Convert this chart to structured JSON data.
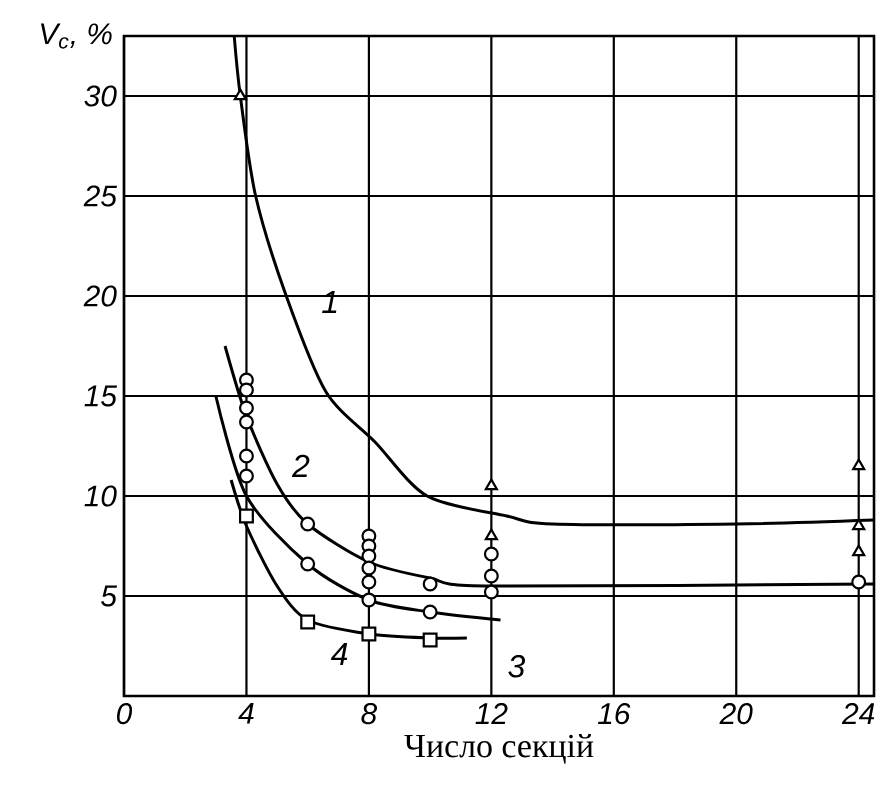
{
  "chart_data": {
    "type": "line",
    "xlabel": "Число секцій",
    "ylabel": "V$_{c}$, %",
    "xlim": [
      0,
      24.5
    ],
    "ylim": [
      0,
      33
    ],
    "xticks": [
      0,
      4,
      8,
      12,
      16,
      20,
      24
    ],
    "yticks": [
      5,
      10,
      15,
      20,
      25,
      30
    ],
    "grid": true,
    "series": [
      {
        "name": "1",
        "color": "#000000",
        "marker": "none",
        "x": [
          3.6,
          3.8,
          4.3,
          5.3,
          6.6,
          8.2,
          9.9,
          12.5,
          14,
          20,
          24.5
        ],
        "values": [
          33,
          30,
          25,
          20,
          15.2,
          12.7,
          10,
          9,
          8.6,
          8.6,
          8.8
        ]
      },
      {
        "name": "2",
        "color": "#000000",
        "marker": "none",
        "x": [
          3.3,
          4,
          5,
          6,
          8,
          10,
          12,
          24.5
        ],
        "values": [
          17.5,
          14,
          10.6,
          8.6,
          6.7,
          5.9,
          5.5,
          5.6
        ]
      },
      {
        "name": "3",
        "color": "#000000",
        "marker": "none",
        "x": [
          3,
          4,
          6,
          8,
          10,
          12.3
        ],
        "values": [
          15,
          10,
          6.6,
          4.8,
          4.2,
          3.8
        ]
      },
      {
        "name": "4",
        "color": "#000000",
        "marker": "none",
        "x": [
          3.5,
          4,
          5,
          6,
          8,
          10,
          11.2
        ],
        "values": [
          10.8,
          8.5,
          5.5,
          3.8,
          3.1,
          2.9,
          2.9
        ]
      },
      {
        "type": "scatter",
        "color": "#000000",
        "marker": "triangle",
        "x": [
          3.8,
          12,
          12,
          24,
          24,
          24
        ],
        "values": [
          30,
          10.5,
          8,
          11.5,
          8.5,
          7.2
        ]
      },
      {
        "type": "scatter",
        "color": "#000000",
        "marker": "circle",
        "x": [
          4,
          4,
          4,
          4,
          4,
          4,
          6,
          6,
          8,
          8,
          8,
          8,
          8,
          8,
          10,
          10,
          12,
          12,
          12,
          24
        ],
        "values": [
          15.8,
          15.3,
          14.4,
          13.7,
          12,
          11,
          8.6,
          6.6,
          8,
          7.5,
          7,
          6.4,
          5.7,
          4.8,
          5.6,
          4.2,
          7.1,
          6,
          5.2,
          5.7
        ]
      },
      {
        "type": "scatter",
        "color": "#000000",
        "marker": "square",
        "x": [
          4,
          6,
          8,
          10
        ],
        "values": [
          9,
          3.7,
          3.1,
          2.8
        ]
      }
    ]
  }
}
